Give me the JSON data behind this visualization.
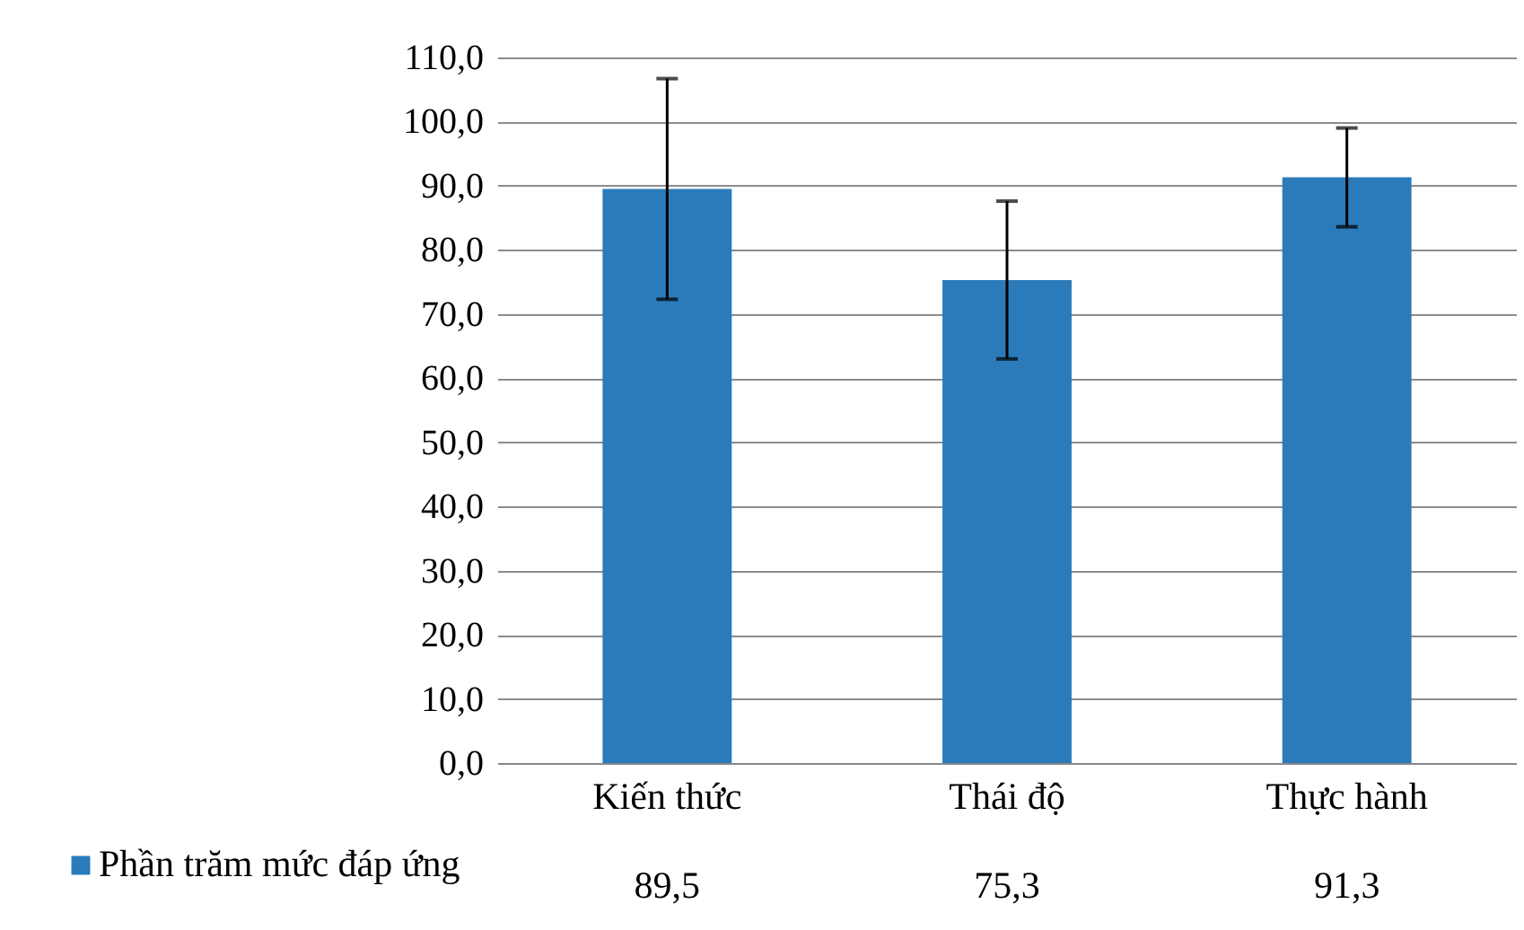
{
  "chart_data": {
    "type": "bar",
    "categories": [
      "Kiến thức",
      "Thái độ",
      "Thực hành"
    ],
    "series": [
      {
        "name": "Phần trăm mức đáp ứng",
        "color": "#2b7bba",
        "values": [
          89.5,
          75.3,
          91.3
        ],
        "errors": [
          17.2,
          12.3,
          7.7
        ],
        "value_labels": [
          "89,5",
          "75,3",
          "91,3"
        ]
      }
    ],
    "ylim": [
      0,
      110
    ],
    "yticks": [
      {
        "value": 0,
        "label": "0,0"
      },
      {
        "value": 10,
        "label": "10,0"
      },
      {
        "value": 20,
        "label": "20,0"
      },
      {
        "value": 30,
        "label": "30,0"
      },
      {
        "value": 40,
        "label": "40,0"
      },
      {
        "value": 50,
        "label": "50,0"
      },
      {
        "value": 60,
        "label": "60,0"
      },
      {
        "value": 70,
        "label": "70,0"
      },
      {
        "value": 80,
        "label": "80,0"
      },
      {
        "value": 90,
        "label": "90,0"
      },
      {
        "value": 100,
        "label": "100,0"
      },
      {
        "value": 110,
        "label": "110,0"
      }
    ],
    "grid": "y",
    "legend": "bottom"
  }
}
